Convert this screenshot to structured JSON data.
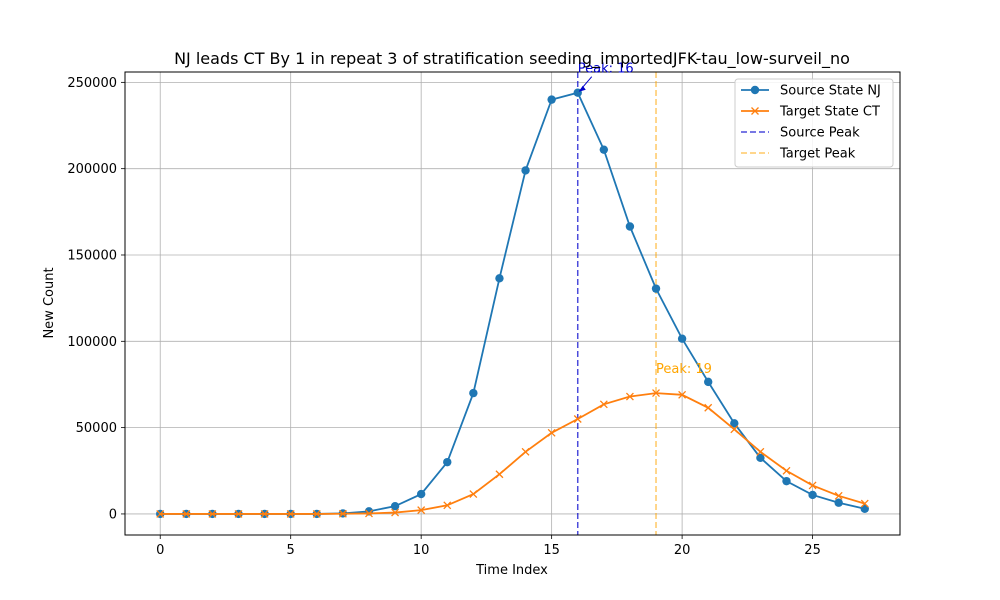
{
  "chart_data": {
    "type": "line",
    "title": "NJ leads CT By 1 in repeat 3 of stratification seeding_importedJFK-tau_low-surveil_no",
    "xlabel": "Time Index",
    "ylabel": "New Count",
    "xlim": [
      -1.35,
      28.35
    ],
    "ylim": [
      -12200,
      256000
    ],
    "xticks": [
      0,
      5,
      10,
      15,
      20,
      25
    ],
    "yticks": [
      0,
      50000,
      100000,
      150000,
      200000,
      250000
    ],
    "grid": true,
    "legend_position": "top-right",
    "x": [
      0,
      1,
      2,
      3,
      4,
      5,
      6,
      7,
      8,
      9,
      10,
      11,
      12,
      13,
      14,
      15,
      16,
      17,
      18,
      19,
      20,
      21,
      22,
      23,
      24,
      25,
      26,
      27
    ],
    "series": [
      {
        "name": "Source State NJ",
        "marker": "circle",
        "color": "#1f77b4",
        "values": [
          0,
          0,
          0,
          0,
          0,
          0,
          0,
          300,
          1500,
          4500,
          11500,
          30000,
          70000,
          136500,
          199000,
          240000,
          244000,
          211000,
          166500,
          130500,
          101500,
          76500,
          52500,
          32500,
          19000,
          11000,
          6500,
          3000
        ]
      },
      {
        "name": "Target State CT",
        "marker": "x",
        "color": "#ff7f0e",
        "values": [
          0,
          0,
          0,
          0,
          0,
          0,
          0,
          100,
          300,
          800,
          2200,
          5000,
          11500,
          23000,
          36000,
          47000,
          55000,
          63500,
          68000,
          70000,
          69000,
          61500,
          49000,
          36000,
          25000,
          16500,
          10500,
          6000
        ]
      }
    ],
    "vlines": [
      {
        "name": "Source Peak",
        "x": 16,
        "color": "#0000cc",
        "style": "dashed"
      },
      {
        "name": "Target Peak",
        "x": 19,
        "color": "#ffa500",
        "style": "dashed"
      }
    ],
    "annotations": [
      {
        "text": "Peak: 16",
        "x": 16,
        "y": 244000,
        "color": "#0000cc"
      },
      {
        "text": "Peak: 19",
        "x": 19,
        "y": 70000,
        "color": "#ffa500"
      }
    ]
  }
}
